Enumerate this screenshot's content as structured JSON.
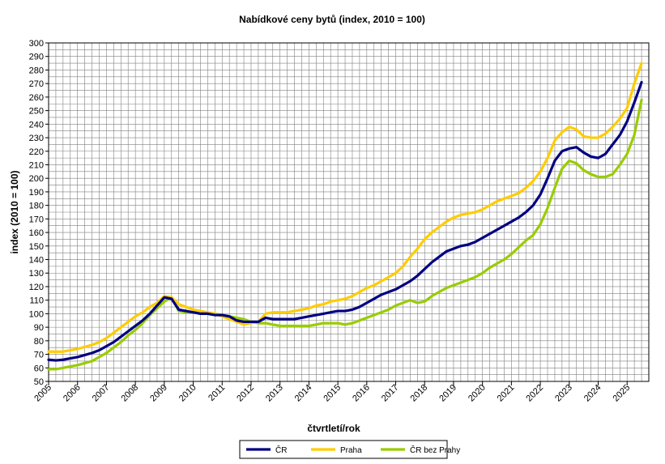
{
  "chart_data": {
    "type": "line",
    "title": "Nabídkové ceny bytů (index, 2010 = 100)",
    "xlabel": "čtvrtletí/rok",
    "ylabel": "index (2010 = 100)",
    "ylim": [
      50,
      300
    ],
    "ytick_step": 10,
    "x_start": 2005.0,
    "quarters": 83,
    "xticks": [
      "2005",
      "2006",
      "2007",
      "2008",
      "2009",
      "2010",
      "2011",
      "2012",
      "2013",
      "2014",
      "2015",
      "2016",
      "2017",
      "2018",
      "2019",
      "2020",
      "2021",
      "2022",
      "2023",
      "2024",
      "2025"
    ],
    "grid": true,
    "legend_position": "bottom",
    "series": [
      {
        "name": "ČR",
        "color": "#000080",
        "values": [
          66,
          65.5,
          66,
          67,
          68,
          69.5,
          71,
          73,
          76,
          79,
          83,
          87,
          91,
          95,
          100,
          106,
          112,
          111,
          103,
          102,
          101,
          100,
          100,
          99,
          99,
          98,
          95,
          94,
          94,
          94,
          97,
          96,
          96,
          96,
          96,
          97,
          98,
          99,
          100,
          101,
          102,
          102,
          103,
          105,
          108,
          111,
          114,
          116,
          118,
          121,
          124,
          128,
          133,
          138,
          142,
          146,
          148,
          150,
          151,
          153,
          156,
          159,
          162,
          165,
          168,
          171,
          175,
          180,
          188,
          200,
          213,
          220,
          222,
          223,
          219,
          216,
          215,
          218,
          225,
          232,
          242,
          256,
          271
        ]
      },
      {
        "name": "Praha",
        "color": "#FFCC00",
        "values": [
          72,
          72,
          72,
          73,
          74,
          75.5,
          77,
          79,
          82,
          86,
          90,
          94,
          98,
          101,
          105,
          108,
          113,
          112,
          107,
          105,
          103,
          102,
          101,
          100,
          98,
          96,
          94,
          92,
          93,
          94,
          100,
          101,
          101,
          101,
          102,
          103,
          104,
          106,
          107,
          109,
          110,
          111,
          113,
          116,
          119,
          121,
          124,
          127,
          130,
          135,
          142,
          148,
          155,
          160,
          164,
          168,
          171,
          173,
          174,
          175,
          177,
          180,
          183,
          185,
          187,
          189,
          193,
          198,
          205,
          215,
          228,
          234,
          238,
          236,
          231,
          230,
          230,
          233,
          238,
          244,
          252,
          270,
          285
        ]
      },
      {
        "name": "ČR bez Prahy",
        "color": "#99CC00",
        "values": [
          59,
          59,
          60,
          61,
          62,
          63.5,
          65,
          68,
          71,
          75,
          79,
          84,
          88,
          93,
          99,
          104,
          109,
          112,
          102,
          101,
          101,
          101,
          100,
          100,
          99,
          98,
          97,
          96,
          94,
          93,
          93,
          92,
          91,
          91,
          91,
          91,
          91,
          92,
          93,
          93,
          93,
          92,
          93,
          95,
          97,
          99,
          101,
          103,
          106,
          108,
          110,
          108,
          109,
          113,
          116,
          119,
          121,
          123,
          125,
          127,
          130,
          134,
          137,
          140,
          144,
          149,
          154,
          158,
          166,
          178,
          193,
          207,
          213,
          211,
          206,
          203,
          201,
          201,
          203,
          210,
          218,
          232,
          258
        ]
      }
    ]
  }
}
